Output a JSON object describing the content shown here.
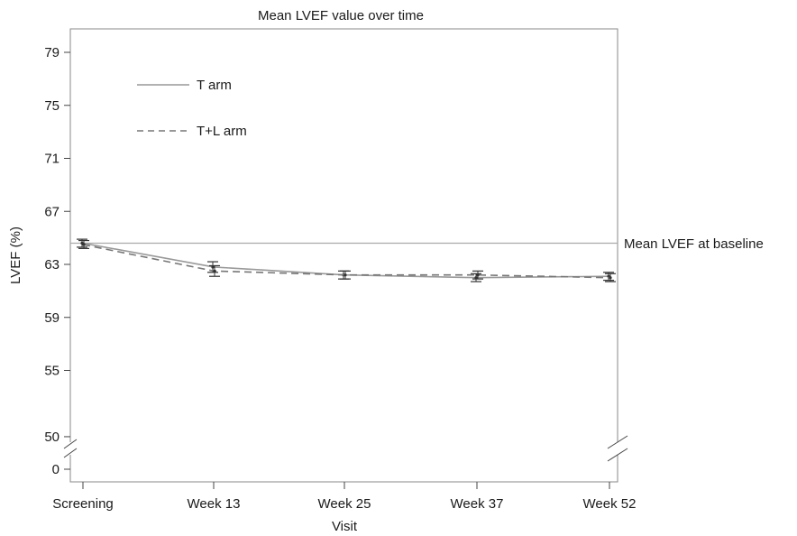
{
  "chart_data": {
    "type": "line",
    "title": "Mean LVEF value over time",
    "xlabel": "Visit",
    "ylabel": "LVEF (%)",
    "categories": [
      "Screening",
      "Week 13",
      "Week 25",
      "Week 37",
      "Week 52"
    ],
    "y_ticks": [
      "79",
      "75",
      "71",
      "67",
      "63",
      "59",
      "55",
      "50",
      "0"
    ],
    "y_axis_break": "between 0 and 50",
    "ylim": [
      49,
      80
    ],
    "grid": false,
    "legend_placement": "top-left",
    "series": [
      {
        "name": "T arm",
        "line_style": "solid",
        "color": "#999999",
        "values": [
          64.6,
          62.8,
          62.2,
          62.0,
          62.1
        ],
        "error": [
          0.3,
          0.4,
          0.3,
          0.3,
          0.3
        ]
      },
      {
        "name": "T+L arm",
        "line_style": "dashed",
        "color": "#777777",
        "values": [
          64.5,
          62.5,
          62.2,
          62.2,
          62.0
        ],
        "error": [
          0.3,
          0.4,
          0.3,
          0.3,
          0.3
        ]
      }
    ],
    "reference_line": {
      "value": 64.6,
      "label": "Mean LVEF at baseline",
      "color": "#aaaaaa"
    }
  }
}
